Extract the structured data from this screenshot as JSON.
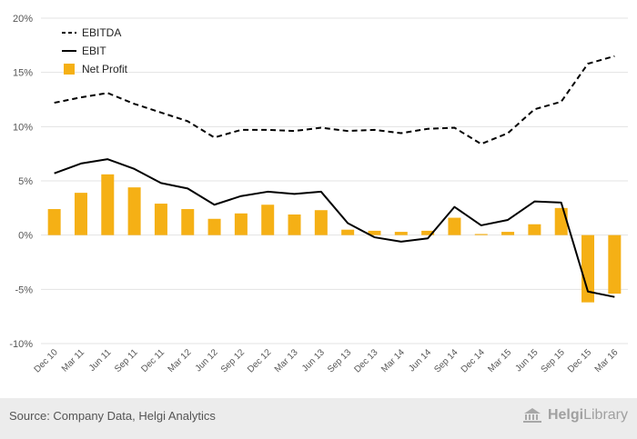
{
  "chart_data": {
    "type": "bar",
    "categories": [
      "Dec 10",
      "Mar 11",
      "Jun 11",
      "Sep 11",
      "Dec 11",
      "Mar 12",
      "Jun 12",
      "Sep 12",
      "Dec 12",
      "Mar 13",
      "Jun 13",
      "Sep 13",
      "Dec 13",
      "Mar 14",
      "Jun 14",
      "Sep 14",
      "Dec 14",
      "Mar 15",
      "Jun 15",
      "Sep 15",
      "Dec 15",
      "Mar 16"
    ],
    "ylim": [
      -10,
      20
    ],
    "yticks": [
      -10,
      -5,
      0,
      5,
      10,
      15,
      20
    ],
    "ytick_labels": [
      "-10%",
      "-5%",
      "0%",
      "5%",
      "10%",
      "15%",
      "20%"
    ],
    "grid": true,
    "legend_position": "top-left",
    "series": [
      {
        "name": "EBITDA",
        "type": "line",
        "style": "dashed",
        "color": "#000000",
        "values": [
          12.2,
          12.7,
          13.1,
          12.1,
          11.3,
          10.5,
          9.0,
          9.7,
          9.7,
          9.6,
          9.9,
          9.6,
          9.7,
          9.4,
          9.8,
          9.9,
          8.4,
          9.4,
          11.6,
          12.3,
          15.8,
          16.5
        ]
      },
      {
        "name": "EBIT",
        "type": "line",
        "style": "solid",
        "color": "#000000",
        "values": [
          5.7,
          6.6,
          7.0,
          6.1,
          4.8,
          4.3,
          2.8,
          3.6,
          4.0,
          3.8,
          4.0,
          1.1,
          -0.2,
          -0.6,
          -0.3,
          2.6,
          0.9,
          1.4,
          3.1,
          3.0,
          -5.2,
          -5.7
        ]
      },
      {
        "name": "Net Profit",
        "type": "bar",
        "color": "#f5b015",
        "values": [
          2.4,
          3.9,
          5.6,
          4.4,
          2.9,
          2.4,
          1.5,
          2.0,
          2.8,
          1.9,
          2.3,
          0.5,
          0.4,
          0.3,
          0.4,
          1.6,
          0.1,
          0.3,
          1.0,
          2.5,
          -6.2,
          -5.4
        ]
      }
    ]
  },
  "footer": {
    "source": "Source: Company Data, Helgi Analytics",
    "brand_bold": "Helgi",
    "brand_light": "Library"
  },
  "colors": {
    "footer_bg": "#ececec",
    "grid": "#e3e3e3",
    "axis_text": "#555555",
    "bar": "#f5b015"
  }
}
